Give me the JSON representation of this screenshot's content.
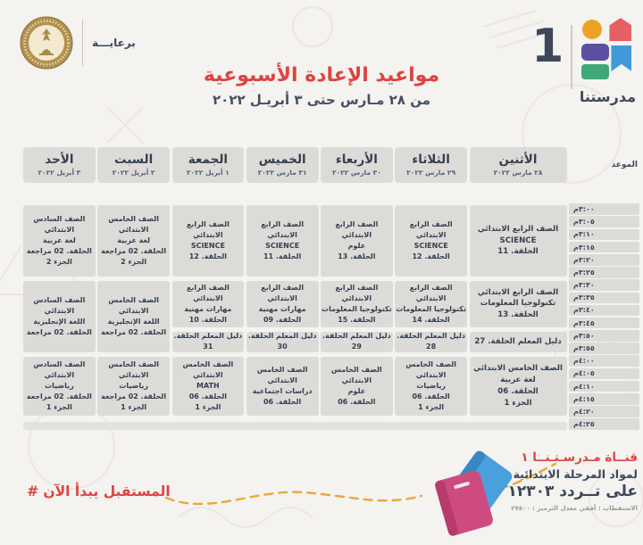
{
  "header": {
    "sponsor_label": "برعايـــة",
    "title": "مواعيد الإعادة الأسبوعية",
    "subtitle": "من ٢٨ مـارس حتى ٣ أبريـل ٢٠٢٢",
    "brand": {
      "wordmark": "مدرستنا",
      "number": "1",
      "colors": {
        "orange": "#efa126",
        "coral": "#e65f63",
        "purple": "#5a4fa0",
        "blue": "#3f9ad9",
        "green": "#3fa878"
      }
    }
  },
  "table": {
    "time_header": "الموعد",
    "times": [
      "٣:٠٠م",
      "٣:٠٥م",
      "٣:١٠م",
      "٣:١٥م",
      "٣:٢٠م",
      "٣:٢٥م",
      "٣:٣٠م",
      "٣:٣٥م",
      "٣:٤٠م",
      "٣:٤٥م",
      "٣:٥٠م",
      "٣:٥٥م",
      "٤:٠٠م",
      "٤:٠٥م",
      "٤:١٠م",
      "٤:١٥م",
      "٤:٢٠م",
      "٤:٢٥م"
    ],
    "days": [
      {
        "name": "الأثنين",
        "date": "٢٨ مارس ٢٠٢٢",
        "cells": [
          {
            "band": "b1",
            "lines": [
              "الصف الرابع الابتدائي",
              "SCIENCE",
              "الحلقة. 11"
            ]
          },
          {
            "band": "b2",
            "lines": [
              "الصف الرابع الابتدائي",
              "تكنولوجيا المعلومات",
              "الحلقة. 13"
            ]
          },
          {
            "band": "b3",
            "lines": [
              "دليل المعلم الحلقة. 27"
            ]
          },
          {
            "band": "b4",
            "lines": [
              "الصف الخامس الابتدائي",
              "لغة عربية",
              "الحلقة. 06",
              "الجزء 1"
            ]
          }
        ]
      },
      {
        "name": "الثلاثاء",
        "date": "٢٩ مارس ٢٠٢٢",
        "cells": [
          {
            "band": "b1",
            "lines": [
              "الصف الرابع الابتدائي",
              "SCIENCE",
              "الحلقة. 12"
            ]
          },
          {
            "band": "b2",
            "lines": [
              "الصف الرابع الابتدائي",
              "تكنولوجيا المعلومات",
              "الحلقة. 14"
            ]
          },
          {
            "band": "b3",
            "lines": [
              "دليل المعلم الحلقة. 28"
            ]
          },
          {
            "band": "b4",
            "lines": [
              "الصف الخامس الابتدائي",
              "رياضيات",
              "الحلقة. 06",
              "الجزء 1"
            ]
          }
        ]
      },
      {
        "name": "الأربعاء",
        "date": "٣٠ مارس ٢٠٢٢",
        "cells": [
          {
            "band": "b1",
            "lines": [
              "الصف الرابع الابتدائي",
              "علوم",
              "الحلقة. 13"
            ]
          },
          {
            "band": "b2",
            "lines": [
              "الصف الرابع الابتدائي",
              "تكنولوجيا المعلومات",
              "الحلقة. 15"
            ]
          },
          {
            "band": "b3",
            "lines": [
              "دليل المعلم الحلقة. 29"
            ]
          },
          {
            "band": "b4",
            "lines": [
              "الصف الخامس الابتدائي",
              "علوم",
              "الحلقة. 06"
            ]
          }
        ]
      },
      {
        "name": "الخميس",
        "date": "٣١ مارس ٢٠٢٢",
        "cells": [
          {
            "band": "b1",
            "lines": [
              "الصف الرابع الابتدائي",
              "SCIENCE",
              "الحلقة. 11"
            ]
          },
          {
            "band": "b2",
            "lines": [
              "الصف الرابع الابتدائي",
              "مهارات مهنية",
              "الحلقة. 09"
            ]
          },
          {
            "band": "b3",
            "lines": [
              "دليل المعلم الحلقة. 30"
            ]
          },
          {
            "band": "b4",
            "lines": [
              "الصف الخامس الابتدائي",
              "دراسات اجتماعية",
              "الحلقة. 06"
            ]
          }
        ]
      },
      {
        "name": "الجمعة",
        "date": "١ أبريل ٢٠٢٢",
        "cells": [
          {
            "band": "b1",
            "lines": [
              "الصف الرابع الابتدائي",
              "SCIENCE",
              "الحلقة. 12"
            ]
          },
          {
            "band": "b2",
            "lines": [
              "الصف الرابع الابتدائي",
              "مهارات مهنية",
              "الحلقة. 10"
            ]
          },
          {
            "band": "b3",
            "lines": [
              "دليل المعلم الحلقة. 31"
            ]
          },
          {
            "band": "b4",
            "lines": [
              "الصف الخامس الابتدائي",
              "MATH",
              "الحلقة. 06",
              "الجزء 1"
            ]
          }
        ]
      },
      {
        "name": "السبت",
        "date": "٢ أبريل ٢٠٢٢",
        "cells": [
          {
            "band": "b1",
            "lines": [
              "الصف الخامس الابتدائي",
              "لغة عربية",
              "الحلقة. 02 مراجعة",
              "الجزء 2"
            ]
          },
          {
            "band": "b23",
            "lines": [
              "الصف الخامس الابتدائي",
              "اللغة الإنجليزية",
              "الحلقة. 02 مراجعة"
            ]
          },
          {
            "band": "b4",
            "lines": [
              "الصف الخامس الابتدائي",
              "رياضيات",
              "الحلقة. 02 مراجعة",
              "الجزء 1"
            ]
          }
        ]
      },
      {
        "name": "الأحد",
        "date": "٣ أبريل ٢٠٢٢",
        "cells": [
          {
            "band": "b1",
            "lines": [
              "الصف السادس الابتدائي",
              "لغة عربية",
              "الحلقة. 02 مراجعة",
              "الجزء 2"
            ]
          },
          {
            "band": "b23",
            "lines": [
              "الصف السادس الابتدائي",
              "اللغة الإنجليزية",
              "الحلقة. 02 مراجعة"
            ]
          },
          {
            "band": "b4",
            "lines": [
              "الصف السادس الابتدائي",
              "رياضيات",
              "الحلقة. 02 مراجعة",
              "الجزء 1"
            ]
          }
        ]
      }
    ]
  },
  "footer": {
    "channel_line1": "قنــاة مـدرسـتـنــا ١",
    "channel_line2": "لمواد المرحلة الابتدائية",
    "channel_line3": "على تــردد ١٢٣٠٣",
    "channel_line4": "الاستقطاب : أفقي   معدل الترميز : ٢٧٥٠٠",
    "hashtag_symbol": "#",
    "hashtag_phrase": "المستقبل يبدأ الآن",
    "accent_red": "#dd4540",
    "navy": "#3e4859"
  }
}
